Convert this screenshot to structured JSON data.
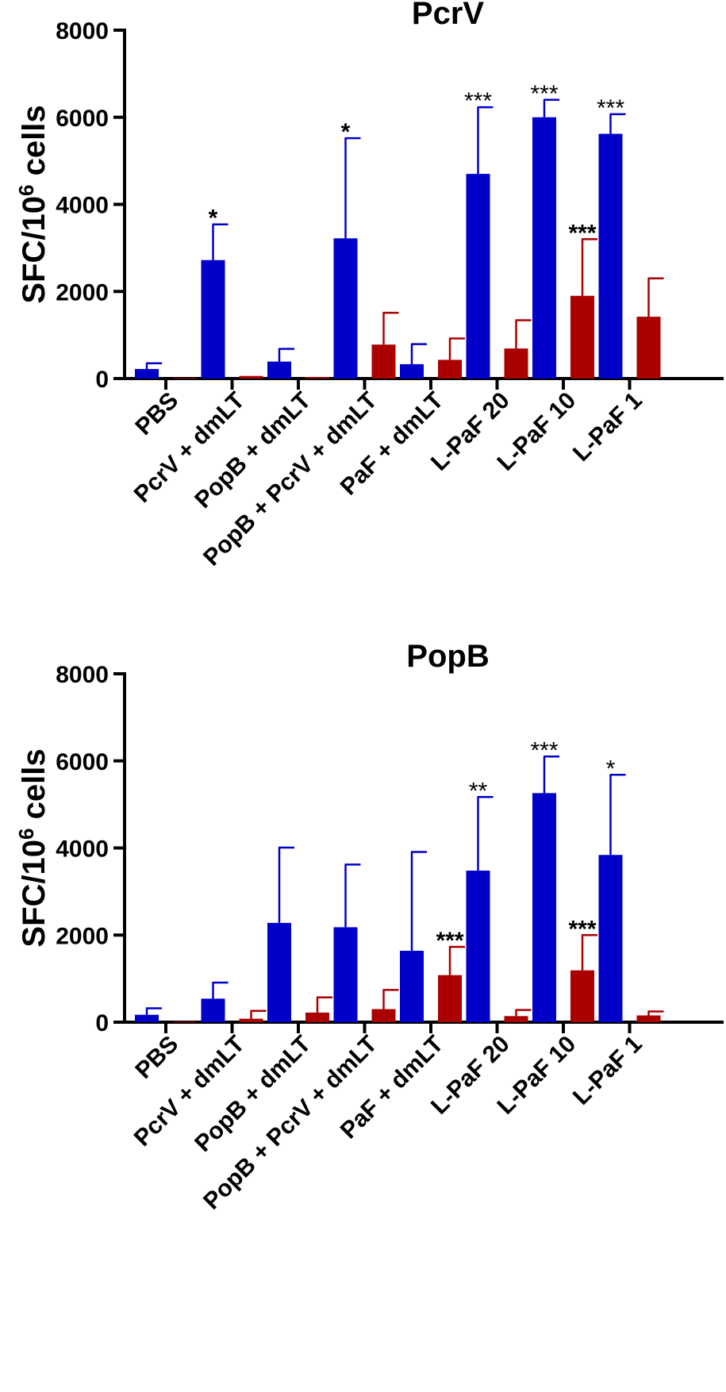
{
  "chart_data": [
    {
      "type": "bar",
      "title": "PcrV",
      "ylabel_main": "SFC/10",
      "ylabel_sup": "6",
      "ylabel_tail": " cells",
      "xlabel": "",
      "ylim": [
        0,
        8000
      ],
      "yticks": [
        "0",
        "2000",
        "4000",
        "6000",
        "8000"
      ],
      "colors": [
        "#0000c8",
        "#aa0000"
      ],
      "categories": [
        "PBS",
        "PcrV + dmLT",
        "PopB + dmLT",
        "PopB + PcrV + dmLT",
        "PaF + dmLT",
        "L-PaF 20",
        "L-PaF 10",
        "L-PaF 1"
      ],
      "series": [
        {
          "name": "blue",
          "values": [
            220,
            2720,
            390,
            3220,
            330,
            4700,
            6000,
            5620
          ],
          "errors": [
            130,
            820,
            290,
            2300,
            460,
            1530,
            400,
            450
          ]
        },
        {
          "name": "red",
          "values": [
            15,
            60,
            30,
            780,
            430,
            690,
            1900,
            1420
          ],
          "errors": [
            0,
            0,
            0,
            730,
            490,
            650,
            1300,
            880
          ]
        }
      ],
      "annotations": [
        {
          "category": 1,
          "series": 0,
          "text": "*",
          "bold": true
        },
        {
          "category": 3,
          "series": 0,
          "text": "*",
          "bold": true
        },
        {
          "category": 5,
          "series": 0,
          "text": "***",
          "bold": false
        },
        {
          "category": 6,
          "series": 0,
          "text": "***",
          "bold": false
        },
        {
          "category": 6,
          "series": 1,
          "text": "***",
          "bold": true
        },
        {
          "category": 7,
          "series": 0,
          "text": "***",
          "bold": false
        }
      ]
    },
    {
      "type": "bar",
      "title": "PopB",
      "ylabel_main": "SFC/10",
      "ylabel_sup": "6",
      "ylabel_tail": " cells",
      "xlabel": "",
      "ylim": [
        0,
        8000
      ],
      "yticks": [
        "0",
        "2000",
        "4000",
        "6000",
        "8000"
      ],
      "colors": [
        "#0000c8",
        "#aa0000"
      ],
      "categories": [
        "PBS",
        "PcrV + dmLT",
        "PopB + dmLT",
        "PopB + PcrV + dmLT",
        "PaF + dmLT",
        "L-PaF 20",
        "L-PaF 10",
        "L-PaF 1"
      ],
      "series": [
        {
          "name": "blue",
          "values": [
            170,
            540,
            2280,
            2180,
            1640,
            3480,
            5260,
            3840
          ],
          "errors": [
            150,
            370,
            1730,
            1440,
            2270,
            1690,
            840,
            1840
          ]
        },
        {
          "name": "red",
          "values": [
            15,
            80,
            220,
            300,
            1080,
            140,
            1190,
            155
          ],
          "errors": [
            0,
            180,
            350,
            440,
            650,
            140,
            810,
            90
          ]
        }
      ],
      "annotations": [
        {
          "category": 4,
          "series": 1,
          "text": "***",
          "bold": true
        },
        {
          "category": 5,
          "series": 0,
          "text": "**",
          "bold": false
        },
        {
          "category": 6,
          "series": 0,
          "text": "***",
          "bold": false
        },
        {
          "category": 6,
          "series": 1,
          "text": "***",
          "bold": true
        },
        {
          "category": 7,
          "series": 0,
          "text": "*",
          "bold": false
        }
      ]
    }
  ]
}
